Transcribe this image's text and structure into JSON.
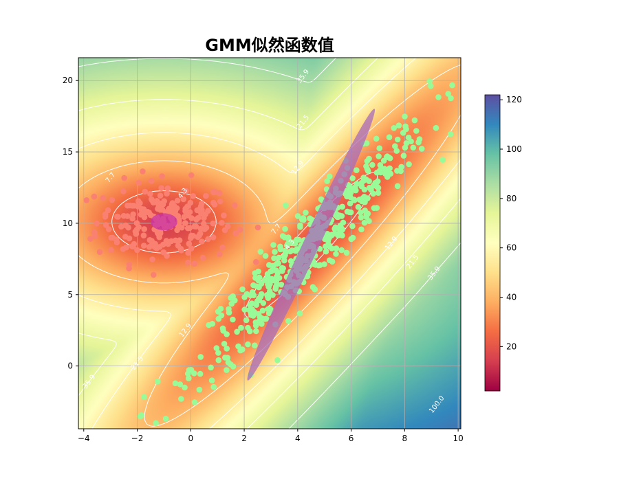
{
  "chart_data": {
    "type": "scatter",
    "title": "GMM似然函数值",
    "xlabel": "",
    "ylabel": "",
    "xlim": [
      -4.2,
      10.1
    ],
    "ylim": [
      -4.4,
      21.6
    ],
    "x_ticks": [
      -4,
      -2,
      0,
      2,
      4,
      6,
      8,
      10
    ],
    "y_ticks": [
      0,
      5,
      10,
      15,
      20
    ],
    "grid": true,
    "background": "heatmap of likelihood with contour lines (Spectral colormap)",
    "contour_levels": [
      {
        "label": "4.3",
        "value": 4.3
      },
      {
        "label": "7.7",
        "value": 7.7
      },
      {
        "label": "12.9",
        "value": 12.9
      },
      {
        "label": "21.5",
        "value": 21.5
      },
      {
        "label": "35.9",
        "value": 35.9
      },
      {
        "label": "100.0",
        "value": 100.0
      }
    ],
    "contour_label_instances": [
      {
        "level": "7.7",
        "x": -3.0,
        "y": 13.2
      },
      {
        "level": "4.3",
        "x": -0.3,
        "y": 12.1
      },
      {
        "level": "12.9",
        "x": -0.2,
        "y": 2.5
      },
      {
        "level": "21.5",
        "x": -2.0,
        "y": 0.2
      },
      {
        "level": "35.9",
        "x": -3.8,
        "y": -1.1
      },
      {
        "level": "35.9",
        "x": 4.2,
        "y": 20.3
      },
      {
        "level": "21.5",
        "x": 4.2,
        "y": 17.1
      },
      {
        "level": "12.9",
        "x": 4.0,
        "y": 13.9
      },
      {
        "level": "7.7",
        "x": 3.2,
        "y": 9.6
      },
      {
        "level": "4.3",
        "x": 3.7,
        "y": 8.5
      },
      {
        "level": "12.9",
        "x": 7.5,
        "y": 8.6
      },
      {
        "level": "21.5",
        "x": 8.3,
        "y": 7.3
      },
      {
        "level": "35.9",
        "x": 9.1,
        "y": 6.5
      },
      {
        "level": "100.0",
        "x": 9.2,
        "y": -2.7
      }
    ],
    "colorbar": {
      "colormap": "Spectral",
      "min": 2,
      "max": 122,
      "ticks": [
        20,
        40,
        60,
        80,
        100,
        120
      ]
    },
    "components": [
      {
        "mean": [
          -1.0,
          10.1
        ],
        "cov": [
          [
            1.6,
            0.0
          ],
          [
            0.0,
            2.0
          ]
        ],
        "n_points": 230,
        "point_color": "#fa8072",
        "ellipse": {
          "rx": 0.5,
          "ry": 0.6,
          "angle_deg": 0,
          "color": "#c934a8"
        }
      },
      {
        "mean": [
          4.5,
          8.5
        ],
        "cov": [
          [
            4.8,
            9.3
          ],
          [
            9.3,
            20.0
          ]
        ],
        "n_points": 500,
        "point_color": "#98fb98",
        "ellipse": {
          "rx": 0.3,
          "ry": 10.5,
          "angle_deg": 25,
          "color": "#a86bbb"
        }
      }
    ]
  }
}
